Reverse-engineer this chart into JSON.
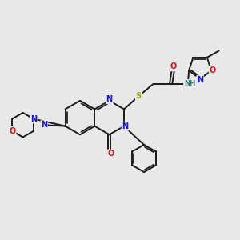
{
  "bg_color": "#e8e8e8",
  "bond_color": "#1a1a1a",
  "bond_width": 1.4,
  "colors": {
    "N": "#1414cc",
    "O": "#cc1414",
    "S": "#aaaa00",
    "H": "#3a7a7a",
    "C": "#1a1a1a"
  },
  "fs": 7.0,
  "fs_s": 6.2
}
